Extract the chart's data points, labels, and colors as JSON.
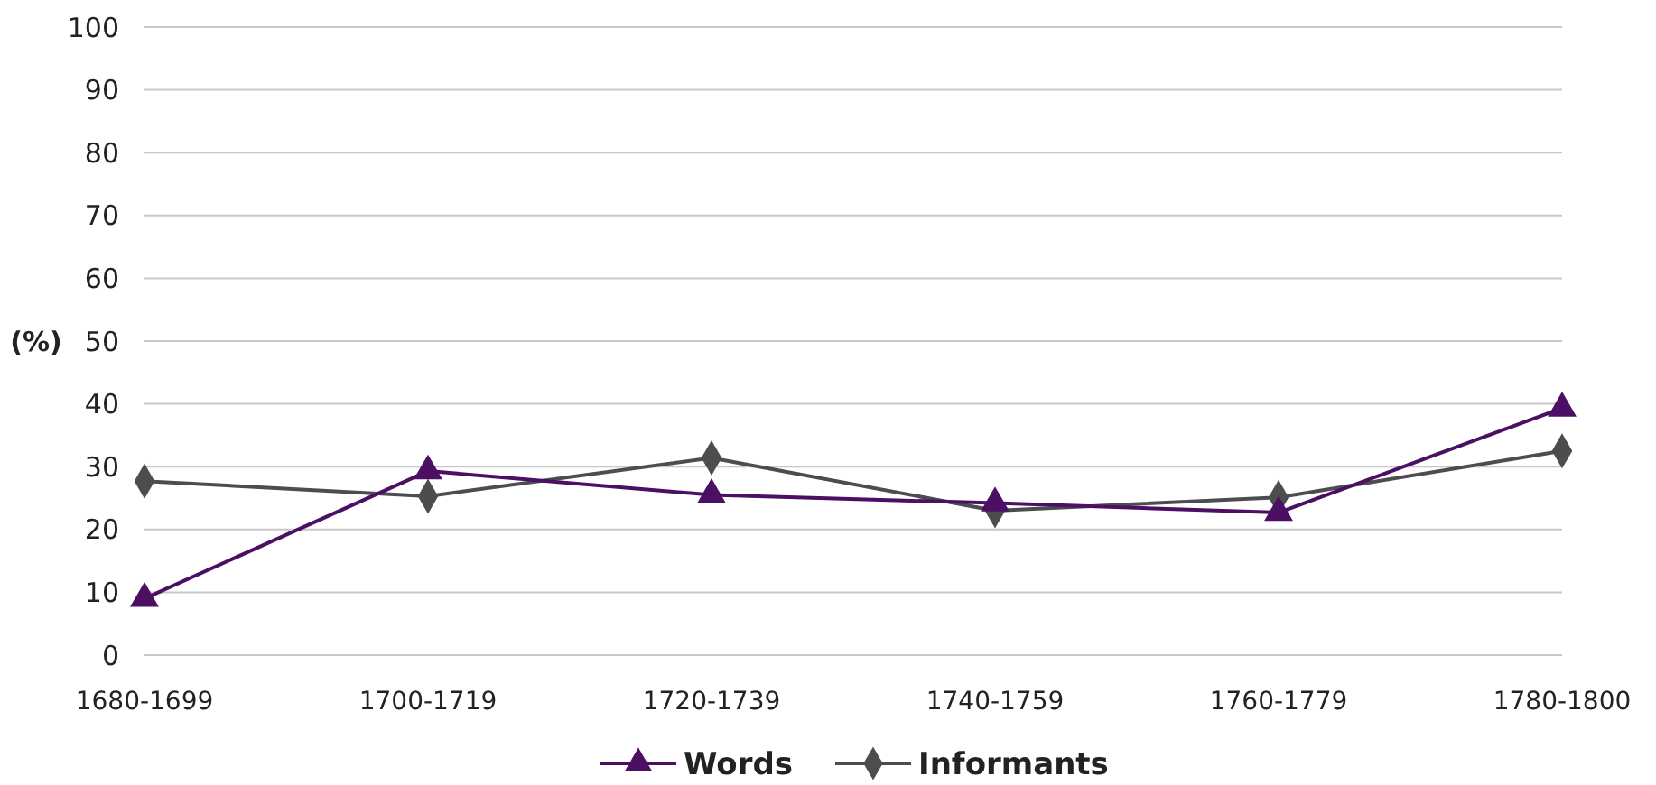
{
  "chart_data": {
    "type": "line",
    "ylabel": "(%)",
    "categories": [
      "1680-1699",
      "1700-1719",
      "1720-1739",
      "1740-1759",
      "1760-1779",
      "1780-1800"
    ],
    "series": [
      {
        "name": "Words",
        "color": "#4b0f63",
        "marker": "triangle",
        "values": [
          9,
          29.3,
          25.5,
          24.2,
          22.7,
          39.3
        ]
      },
      {
        "name": "Informants",
        "color": "#4d4d4f",
        "marker": "diamond",
        "values": [
          27.7,
          25.3,
          31.4,
          23,
          25.1,
          32.5
        ]
      }
    ],
    "ylim": [
      0,
      100
    ],
    "yticks": [
      0,
      10,
      20,
      30,
      40,
      50,
      60,
      70,
      80,
      90,
      100
    ],
    "grid": "y",
    "legend": "bottom",
    "line_style": "solid"
  }
}
